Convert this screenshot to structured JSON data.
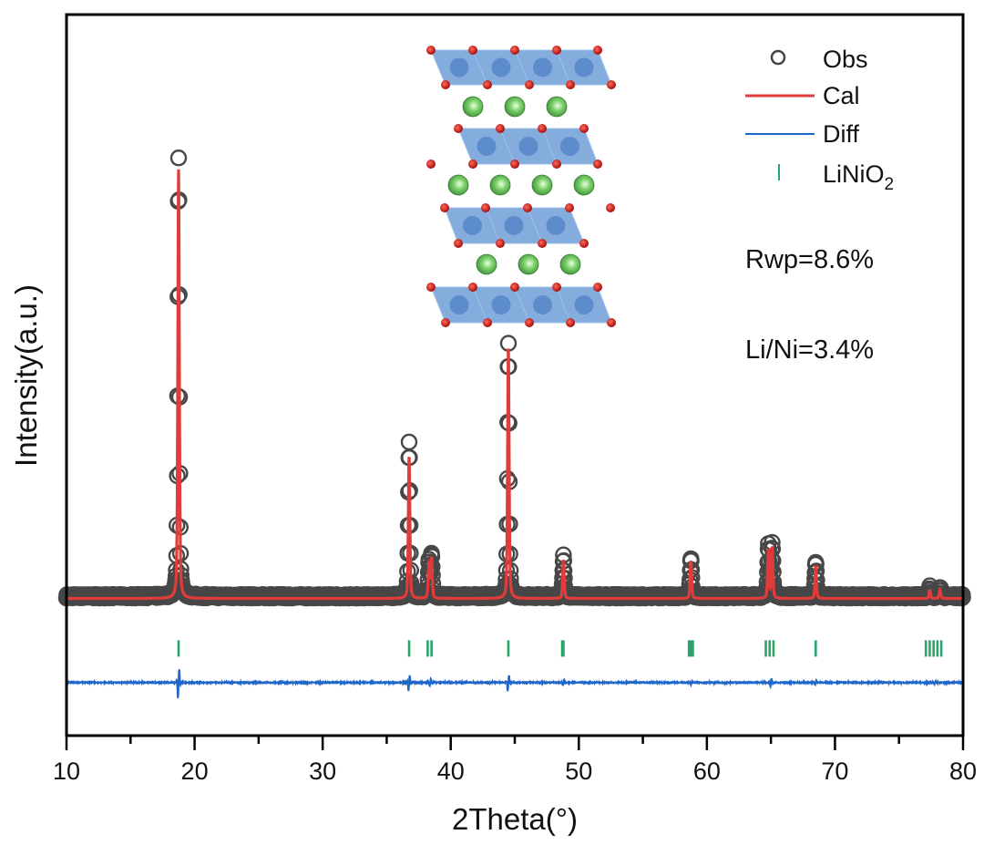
{
  "chart_data": {
    "type": "scatter",
    "xlabel": "2Theta(°)",
    "ylabel": "Intensity(a.u.)",
    "xlim": [
      10,
      80
    ],
    "ylim": [
      -31,
      132
    ],
    "x_ticks": [
      10,
      20,
      30,
      40,
      50,
      60,
      70,
      80
    ],
    "x_tick_labels": [
      "10",
      "20",
      "30",
      "40",
      "50",
      "60",
      "70",
      "80"
    ],
    "y_ticks_shown": false,
    "grid": false,
    "legend_position": "top-right",
    "legend": [
      {
        "label": "Obs",
        "marker": "circle",
        "color": "#444444"
      },
      {
        "label": "Cal",
        "marker": "line",
        "color": "#e23b3b"
      },
      {
        "label": "Diff",
        "marker": "line",
        "color": "#1f66c9"
      },
      {
        "label": "LiNiO",
        "sub": "2",
        "marker": "tick",
        "color": "#2aa46a"
      }
    ],
    "annotations": [
      "Rwp=8.6%",
      "Li/Ni=3.4%"
    ],
    "series": [
      {
        "name": "Obs",
        "peaks_2theta": [
          18.75,
          36.75,
          38.3,
          38.5,
          44.5,
          48.8,
          58.75,
          64.8,
          65.1,
          68.5,
          77.4,
          78.2
        ],
        "peak_intensity": [
          99,
          34.5,
          8,
          9.5,
          57.5,
          9,
          8.5,
          11.5,
          12,
          8,
          2,
          2.2
        ],
        "background": 0.5
      },
      {
        "name": "Cal",
        "peaks_2theta": [
          18.75,
          36.75,
          38.3,
          38.5,
          44.5,
          48.8,
          58.75,
          64.8,
          65.1,
          68.5,
          77.4,
          78.2
        ],
        "peak_intensity": [
          97,
          32,
          7.5,
          9,
          56.5,
          8.7,
          8.5,
          11,
          11.5,
          7.4,
          1.8,
          2
        ],
        "background": 0
      },
      {
        "name": "Diff",
        "offset": -19,
        "spike_2theta": [
          18.75,
          36.75,
          38.4,
          44.5,
          48.8,
          58.8,
          65.0,
          68.5,
          77.8
        ],
        "spike_amplitude": [
          4,
          2.2,
          1,
          2.2,
          0.8,
          0.5,
          1,
          0.6,
          0.4
        ]
      },
      {
        "name": "LiNiO2",
        "offset": -11.3,
        "reflections_2theta": [
          18.75,
          36.75,
          38.2,
          38.5,
          44.5,
          48.7,
          48.8,
          58.6,
          58.75,
          58.9,
          64.6,
          64.9,
          65.2,
          68.5,
          77.1,
          77.4,
          77.7,
          78.0,
          78.3
        ]
      }
    ]
  }
}
